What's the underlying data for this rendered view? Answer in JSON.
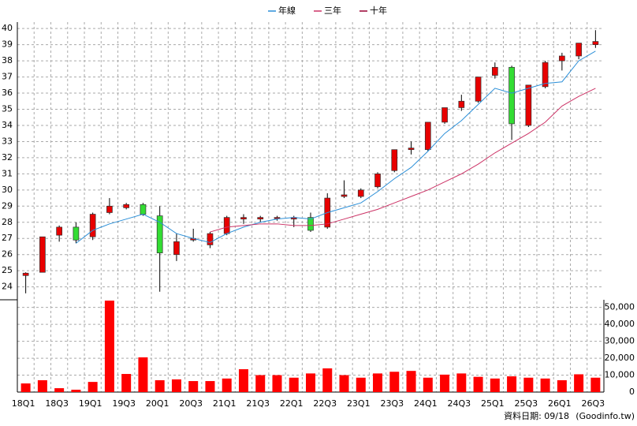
{
  "chart_data": [
    {
      "type": "candlestick",
      "categories": [
        "18Q1",
        null,
        "18Q3",
        null,
        "19Q1",
        null,
        "19Q3",
        null,
        "20Q1",
        null,
        "20Q3",
        null,
        "21Q1",
        null,
        "21Q3",
        null,
        "22Q1",
        null,
        "22Q3",
        null,
        "23Q1",
        null,
        "23Q3",
        null,
        "24Q1",
        null,
        "24Q3",
        null,
        "25Q1",
        null,
        "25Q3",
        null,
        "26Q1",
        null,
        "26Q3"
      ],
      "open": [
        24.7,
        24.9,
        27.2,
        27.7,
        27.1,
        28.6,
        28.9,
        29.1,
        28.4,
        26.0,
        26.9,
        26.6,
        27.3,
        28.2,
        28.2,
        28.3,
        28.2,
        28.3,
        27.7,
        29.6,
        29.6,
        30.2,
        31.2,
        32.5,
        32.5,
        34.2,
        35.1,
        35.5,
        37.1,
        37.6,
        34.0,
        36.4,
        38.0,
        38.3,
        39.0
      ],
      "high": [
        24.9,
        27.1,
        27.8,
        28.0,
        28.6,
        29.5,
        29.2,
        29.2,
        29.0,
        27.3,
        27.6,
        27.4,
        28.4,
        28.5,
        28.4,
        28.4,
        28.4,
        28.6,
        29.8,
        30.6,
        30.1,
        31.1,
        32.5,
        33.0,
        34.2,
        35.1,
        35.9,
        37.0,
        37.9,
        37.7,
        36.5,
        38.0,
        38.5,
        39.1,
        39.9
      ],
      "low": [
        23.6,
        24.9,
        26.8,
        26.7,
        26.9,
        28.5,
        28.8,
        28.4,
        23.7,
        25.6,
        26.8,
        26.4,
        27.2,
        27.9,
        28.0,
        28.1,
        27.7,
        27.4,
        27.6,
        29.5,
        29.5,
        30.1,
        31.1,
        32.2,
        32.4,
        34.1,
        34.9,
        35.4,
        36.9,
        33.1,
        33.9,
        36.3,
        37.4,
        38.1,
        38.8
      ],
      "close": [
        24.85,
        27.1,
        27.7,
        26.9,
        28.5,
        29.0,
        29.1,
        28.5,
        26.1,
        26.8,
        27.0,
        27.3,
        28.3,
        28.3,
        28.3,
        28.3,
        28.3,
        27.5,
        29.5,
        29.7,
        30.0,
        31.0,
        32.5,
        32.6,
        34.2,
        35.1,
        35.5,
        37.0,
        37.6,
        34.1,
        36.5,
        37.9,
        38.3,
        39.1,
        39.2
      ],
      "up_color": "#e80000",
      "down_color": "#33dd33",
      "series": [
        {
          "name": "年線",
          "color": "#2b8fd8",
          "values": [
            null,
            null,
            null,
            26.7,
            27.5,
            27.9,
            28.2,
            28.5,
            28.0,
            27.3,
            27.0,
            26.75,
            27.3,
            27.7,
            28.0,
            28.2,
            28.3,
            28.2,
            28.6,
            28.9,
            29.2,
            29.9,
            30.7,
            31.4,
            32.4,
            33.5,
            34.3,
            35.3,
            36.3,
            36.0,
            36.3,
            36.6,
            36.7,
            38.0,
            38.6
          ]
        },
        {
          "name": "三年",
          "color": "#cc3366",
          "values": [
            null,
            null,
            null,
            null,
            null,
            null,
            null,
            null,
            null,
            null,
            null,
            27.4,
            27.7,
            27.8,
            27.9,
            27.9,
            27.8,
            27.8,
            27.9,
            28.2,
            28.5,
            28.8,
            29.2,
            29.6,
            30.0,
            30.5,
            31.0,
            31.6,
            32.3,
            32.9,
            33.5,
            34.2,
            35.2,
            35.8,
            36.3
          ]
        },
        {
          "name": "十年",
          "color": "#990033",
          "values": [
            null,
            null,
            null,
            null,
            null,
            null,
            null,
            null,
            null,
            null,
            null,
            null,
            null,
            null,
            null,
            null,
            null,
            null,
            null,
            null,
            null,
            null,
            null,
            null,
            null,
            null,
            null,
            null,
            null,
            null,
            null,
            null,
            null,
            null,
            null
          ]
        }
      ],
      "ylim": [
        23.2,
        40.4
      ],
      "yticks": [
        24,
        25,
        26,
        27,
        28,
        29,
        30,
        31,
        32,
        33,
        34,
        35,
        36,
        37,
        38,
        39,
        40
      ],
      "grid": true
    },
    {
      "type": "bar",
      "values": [
        5100,
        7000,
        2300,
        1400,
        6000,
        54000,
        10700,
        20500,
        7000,
        7500,
        6500,
        6500,
        8000,
        13500,
        10000,
        10000,
        8500,
        11000,
        14000,
        10000,
        8500,
        11000,
        12000,
        12500,
        8500,
        10300,
        11000,
        9000,
        8000,
        9300,
        8500,
        8000,
        7000,
        10500,
        8500
      ],
      "color": "#ff0000",
      "ylim": [
        0,
        54500
      ],
      "yticks": [
        0,
        {
          "value": 10000,
          "label": "10,000"
        },
        {
          "value": 20000,
          "label": "20,000"
        },
        {
          "value": 30000,
          "label": "30,000"
        },
        {
          "value": 40000,
          "label": "40,000"
        },
        {
          "value": 50000,
          "label": "50,000"
        }
      ],
      "grid": true
    }
  ],
  "footer": {
    "date": "資料日期: 09/18",
    "source": "(Goodinfo.tw)"
  }
}
